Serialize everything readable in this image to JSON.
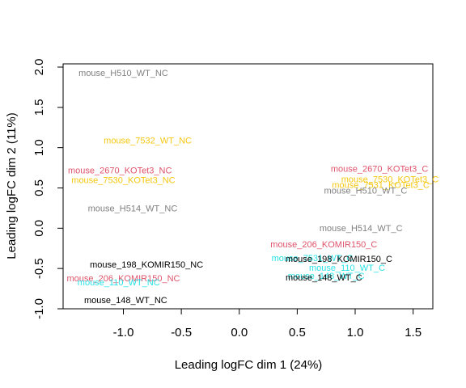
{
  "chart_data": {
    "type": "scatter",
    "title": "",
    "xlabel": "Leading logFC dim 1 (24%)",
    "ylabel": "Leading logFC dim 2 (11%)",
    "xlim": [
      -1.52,
      1.67
    ],
    "ylim": [
      -1.0,
      2.04
    ],
    "x_ticks": [
      -1.0,
      -0.5,
      0.0,
      0.5,
      1.0,
      1.5
    ],
    "x_tick_labels": [
      "-1.0",
      "-0.5",
      "0.0",
      "0.5",
      "1.0",
      "1.5"
    ],
    "y_ticks": [
      -1.0,
      -0.5,
      0.0,
      0.5,
      1.0,
      1.5,
      2.0
    ],
    "y_tick_labels": [
      "-1.0",
      "-0.5",
      "0.0",
      "0.5",
      "1.0",
      "1.5",
      "2.0"
    ],
    "grid": false,
    "colors": {
      "black": "#000000",
      "grey": "#808080",
      "red": "#DF536B",
      "cyan": "#28E2E5",
      "gold": "#F5C710"
    },
    "points": [
      {
        "label": "mouse_H510_WT_NC",
        "x": -1.0,
        "y": 1.92,
        "color": "grey"
      },
      {
        "label": "mouse_7532_WT_NC",
        "x": -0.79,
        "y": 1.08,
        "color": "gold"
      },
      {
        "label": "mouse_2670_KOTet3_NC",
        "x": -1.03,
        "y": 0.71,
        "color": "red"
      },
      {
        "label": "mouse_7530_KOTet3_NC",
        "x": -1.0,
        "y": 0.59,
        "color": "gold"
      },
      {
        "label": "mouse_H514_WT_NC",
        "x": -0.92,
        "y": 0.24,
        "color": "grey"
      },
      {
        "label": "mouse_198_KOMIR150_NC",
        "x": -0.8,
        "y": -0.46,
        "color": "black"
      },
      {
        "label": "mouse_206_KOMIR150_NC",
        "x": -1.0,
        "y": -0.63,
        "color": "red"
      },
      {
        "label": "mouse_110_WT_NC",
        "x": -1.04,
        "y": -0.68,
        "color": "cyan"
      },
      {
        "label": "mouse_148_WT_NC",
        "x": -0.98,
        "y": -0.9,
        "color": "black"
      },
      {
        "label": "mouse_2670_KOTet3_C",
        "x": 1.21,
        "y": 0.73,
        "color": "red"
      },
      {
        "label": "mouse_7530_KOTet3_C",
        "x": 1.3,
        "y": 0.6,
        "color": "gold"
      },
      {
        "label": "mouse_7531_KOTet3_C",
        "x": 1.22,
        "y": 0.53,
        "color": "gold"
      },
      {
        "label": "mouse_H510_WT_C",
        "x": 1.09,
        "y": 0.46,
        "color": "grey"
      },
      {
        "label": "mouse_H514_WT_C",
        "x": 1.05,
        "y": -0.01,
        "color": "grey"
      },
      {
        "label": "mouse_206_KOMIR150_C",
        "x": 0.73,
        "y": -0.21,
        "color": "red"
      },
      {
        "label": "mouse_7531_WT_C",
        "x": 0.63,
        "y": -0.38,
        "color": "cyan"
      },
      {
        "label": "mouse_198_KOMIR150_C",
        "x": 0.86,
        "y": -0.39,
        "color": "black"
      },
      {
        "label": "mouse_110_WT_C",
        "x": 0.93,
        "y": -0.5,
        "color": "cyan"
      },
      {
        "label": "mouse_148_WT_C",
        "x": 0.75,
        "y": -0.6,
        "color": "cyan"
      },
      {
        "label": "mouse_148_WT_C",
        "x": 0.73,
        "y": -0.62,
        "color": "black"
      }
    ]
  }
}
